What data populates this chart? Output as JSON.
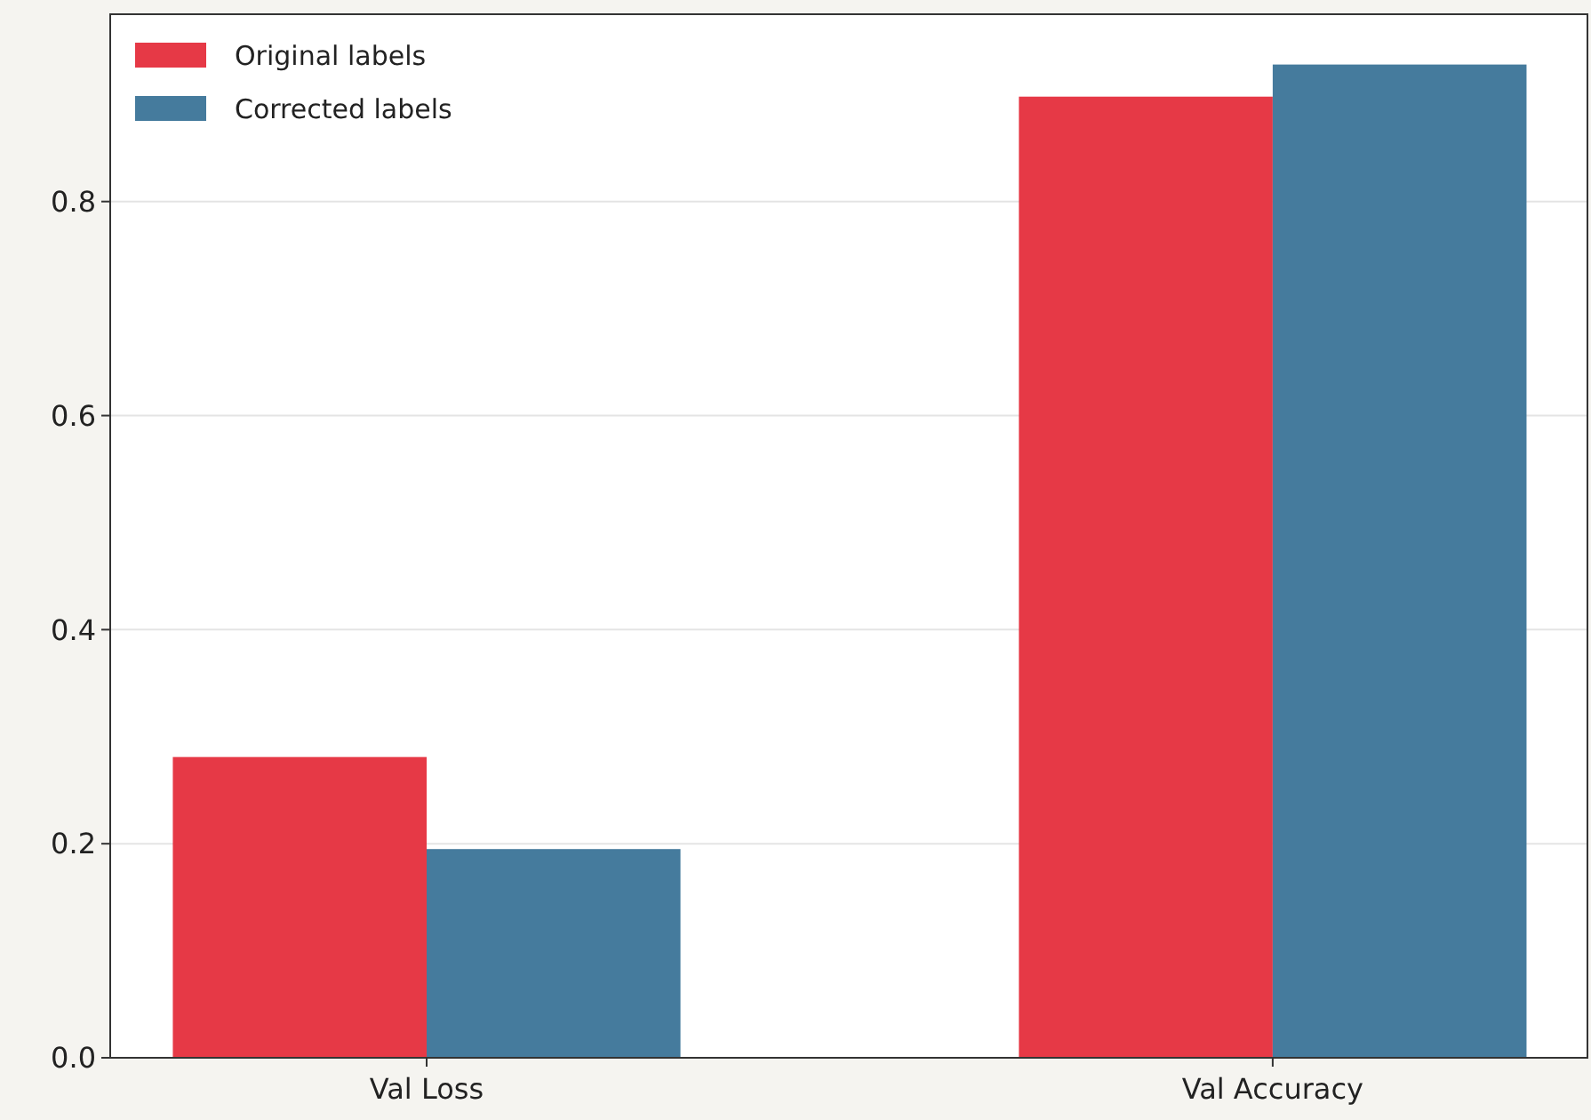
{
  "chart_data": {
    "type": "bar",
    "categories": [
      "Val Loss",
      "Val Accuracy"
    ],
    "series": [
      {
        "name": "Original labels",
        "color": "#e63946",
        "values": [
          0.281,
          0.898
        ]
      },
      {
        "name": "Corrected labels",
        "color": "#457b9d",
        "values": [
          0.195,
          0.928
        ]
      }
    ],
    "ylim": [
      0,
      0.975
    ],
    "yticks": [
      {
        "value": 0,
        "label": "0.0"
      },
      {
        "value": 0.2,
        "label": "0.2"
      },
      {
        "value": 0.4,
        "label": "0.4"
      },
      {
        "value": 0.6,
        "label": "0.6"
      },
      {
        "value": 0.8,
        "label": "0.8"
      }
    ],
    "grid": "y",
    "legend": "top left"
  }
}
